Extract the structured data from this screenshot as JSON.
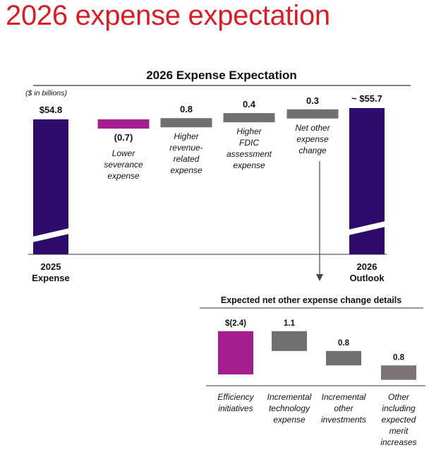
{
  "page": {
    "title": "2026 expense expectation"
  },
  "chart_data": [
    {
      "type": "waterfall",
      "title": "2026 Expense Expectation",
      "unit_note": "($ in billions)",
      "steps": [
        {
          "kind": "total",
          "value": 54.8,
          "value_label": "$54.8",
          "category": [
            "2025",
            "Expense"
          ]
        },
        {
          "kind": "delta",
          "value": -0.7,
          "value_label": "(0.7)",
          "category": [
            "Lower",
            "severance",
            "expense"
          ]
        },
        {
          "kind": "delta",
          "value": 0.8,
          "value_label": "0.8",
          "category": [
            "Higher",
            "revenue-",
            "related",
            "expense"
          ]
        },
        {
          "kind": "delta",
          "value": 0.4,
          "value_label": "0.4",
          "category": [
            "Higher",
            "FDIC",
            "assessment",
            "expense"
          ]
        },
        {
          "kind": "delta",
          "value": 0.3,
          "value_label": "0.3",
          "category": [
            "Net other",
            "expense",
            "change"
          ]
        },
        {
          "kind": "total",
          "value": 55.7,
          "value_label": "~ $55.7",
          "category": [
            "2026",
            "Outlook"
          ]
        }
      ],
      "axis_break": true
    },
    {
      "type": "waterfall",
      "title": "Expected net other expense change details",
      "steps": [
        {
          "kind": "delta",
          "value": -2.4,
          "value_label": "$(2.4)",
          "category": [
            "Efficiency",
            "initiatives"
          ]
        },
        {
          "kind": "delta",
          "value": 1.1,
          "value_label": "1.1",
          "category": [
            "Incremental",
            "technology",
            "expense"
          ]
        },
        {
          "kind": "delta",
          "value": 0.8,
          "value_label": "0.8",
          "category": [
            "Incremental",
            "other",
            "investments"
          ]
        },
        {
          "kind": "delta",
          "value": 0.8,
          "value_label": "0.8",
          "category": [
            "Other",
            "including",
            "expected",
            "merit",
            "increases"
          ]
        }
      ]
    }
  ],
  "colors": {
    "title_red": "#d71e28",
    "total_purple": "#2e0a6b",
    "decrease_magenta": "#a51d8f",
    "increase_gray": "#707070",
    "other_gray": "#7d7274"
  }
}
